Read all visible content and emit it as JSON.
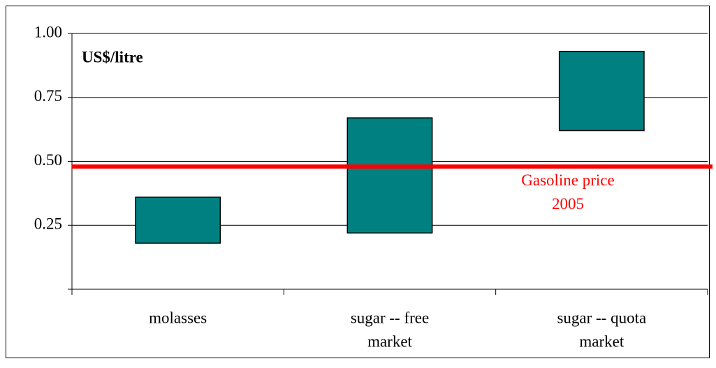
{
  "chart_data": {
    "type": "range-bar",
    "unit_label": "US$/litre",
    "categories": [
      [
        "molasses"
      ],
      [
        "sugar -- free",
        "market"
      ],
      [
        "sugar -- quota",
        "market"
      ]
    ],
    "low": [
      0.18,
      0.22,
      0.62
    ],
    "high": [
      0.36,
      0.67,
      0.93
    ],
    "color": "#008080",
    "ylim": [
      0,
      1
    ],
    "yticks": [
      0,
      0.25,
      {
        "value": 0.5,
        "label": "0.50"
      },
      0.75,
      {
        "value": 1,
        "label": "1.00"
      }
    ],
    "grid": true,
    "reference_line": {
      "value": 0.48,
      "color": "#ff0000",
      "label": [
        "Gasoline price",
        "2005"
      ]
    }
  }
}
